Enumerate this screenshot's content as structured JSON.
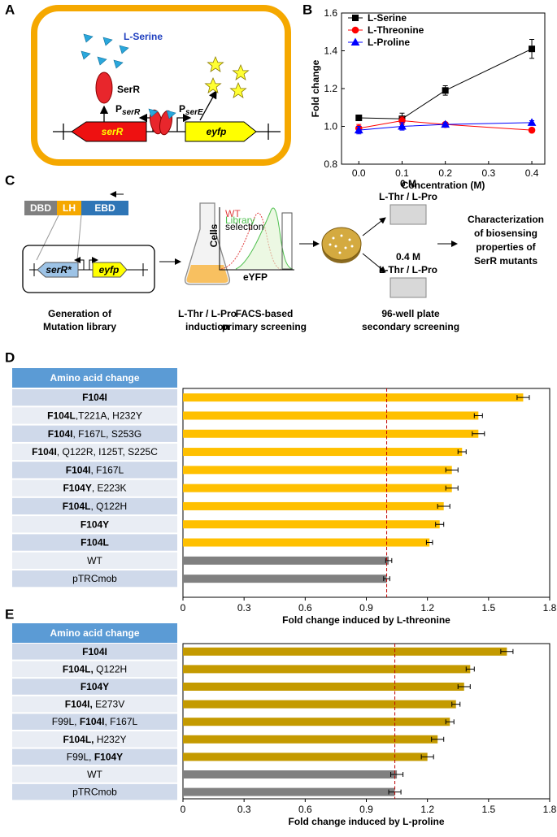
{
  "panel_labels": [
    "A",
    "B",
    "C",
    "D",
    "E"
  ],
  "diagram_a": {
    "ligand": "L-Serine",
    "protein": "SerR",
    "promoter_1": {
      "main": "P",
      "sub": "serR"
    },
    "promoter_2": {
      "main": "P",
      "sub": "serE"
    },
    "gene_1": "serR",
    "gene_2": "eyfp"
  },
  "diagram_c": {
    "domains": [
      "DBD",
      "LH",
      "EBD"
    ],
    "gene_1": "serR*",
    "gene_2": "eyfp",
    "step_1": [
      "Generation of",
      "Mutation library"
    ],
    "step_2": [
      "L-Thr / L-Pro",
      "induction"
    ],
    "step_3": [
      "FACS-based",
      "primary screening"
    ],
    "step_4": [
      "96-well plate",
      "secondary screening"
    ],
    "histogram": {
      "ylabel": "Cells",
      "xlabel": "eYFP",
      "legend": [
        "WT",
        "Library",
        "selection"
      ]
    },
    "plate_1": {
      "concentration": "0 M",
      "ligand": "L-Thr / L-Pro"
    },
    "plate_2": {
      "concentration": "0.4 M",
      "ligand": "L-Thr / L-Pro"
    },
    "result": [
      "Characterization",
      "of biosensing",
      "properties of",
      "SerR mutants"
    ]
  },
  "chart_data": [
    {
      "type": "line",
      "xlabel": "Concentration (M)",
      "ylabel": "Fold change",
      "x": [
        0,
        0.1,
        0.2,
        0.4
      ],
      "xlim": [
        -0.04,
        0.43
      ],
      "xticks": [
        {
          "value": 0,
          "label": "0.0"
        },
        0.1,
        0.2,
        0.3,
        0.4
      ],
      "ylim": [
        0.8,
        1.6
      ],
      "yticks": [
        0.8,
        {
          "value": 1,
          "label": "1.0"
        },
        1.2,
        1.4,
        1.6
      ],
      "legend": "upper left",
      "series": [
        {
          "name": "L-Serine",
          "color": "#000000",
          "marker": "square",
          "values": [
            1.045,
            1.04,
            1.19,
            1.41
          ],
          "errors": [
            0.015,
            0.03,
            0.025,
            0.05
          ]
        },
        {
          "name": "L-Threonine",
          "color": "#ff0000",
          "marker": "circle",
          "values": [
            0.99,
            1.03,
            1.01,
            0.98
          ],
          "errors": [
            0.02,
            0.02,
            0.01,
            0.01
          ]
        },
        {
          "name": "L-Proline",
          "color": "#0000ff",
          "marker": "triangle",
          "values": [
            0.98,
            1.0,
            1.01,
            1.02
          ],
          "errors": [
            0.02,
            0.02,
            0.01,
            0.01
          ]
        }
      ]
    },
    {
      "type": "hbar",
      "header": "Amino acid change",
      "xlabel": "Fold change induced by L-threonine",
      "categories": [
        [
          {
            "text": "F104I",
            "bold": true
          }
        ],
        [
          {
            "text": "F104L",
            "bold": true
          },
          {
            "text": ",T221A, H232Y"
          }
        ],
        [
          {
            "text": "F104I",
            "bold": true
          },
          {
            "text": ", F167L, S253G"
          }
        ],
        [
          {
            "text": "F104I",
            "bold": true
          },
          {
            "text": ", Q122R, I125T, S225C"
          }
        ],
        [
          {
            "text": "F104I",
            "bold": true
          },
          {
            "text": ", F167L"
          }
        ],
        [
          {
            "text": "F104Y",
            "bold": true
          },
          {
            "text": ", E223K"
          }
        ],
        [
          {
            "text": "F104L",
            "bold": true
          },
          {
            "text": ", Q122H"
          }
        ],
        [
          {
            "text": "F104Y",
            "bold": true
          }
        ],
        [
          {
            "text": "F104L",
            "bold": true
          }
        ],
        [
          {
            "text": "WT"
          }
        ],
        [
          {
            "text": "pTRCmob"
          }
        ]
      ],
      "values": [
        1.67,
        1.45,
        1.45,
        1.37,
        1.32,
        1.32,
        1.28,
        1.26,
        1.21,
        1.01,
        1.0
      ],
      "errors": [
        0.03,
        0.02,
        0.03,
        0.02,
        0.03,
        0.03,
        0.03,
        0.02,
        0.015,
        0.015,
        0.015
      ],
      "colors": [
        "#ffc000",
        "#ffc000",
        "#ffc000",
        "#ffc000",
        "#ffc000",
        "#ffc000",
        "#ffc000",
        "#ffc000",
        "#ffc000",
        "#808080",
        "#808080"
      ],
      "reference_line": 1.0,
      "xlim": [
        0,
        1.8
      ],
      "xticks": [
        0,
        0.3,
        0.6,
        0.9,
        1.2,
        1.5,
        1.8
      ]
    },
    {
      "type": "hbar",
      "header": "Amino acid change",
      "xlabel": "Fold change induced by L-proline",
      "categories": [
        [
          {
            "text": "F104I",
            "bold": true
          }
        ],
        [
          {
            "text": "F104L,",
            "bold": true
          },
          {
            "text": " Q122H"
          }
        ],
        [
          {
            "text": "F104Y",
            "bold": true
          }
        ],
        [
          {
            "text": "F104I,",
            "bold": true
          },
          {
            "text": " E273V"
          }
        ],
        [
          {
            "text": "F99L, "
          },
          {
            "text": "F104I",
            "bold": true
          },
          {
            "text": ", F167L"
          }
        ],
        [
          {
            "text": "F104L,",
            "bold": true
          },
          {
            "text": " H232Y"
          }
        ],
        [
          {
            "text": "F99L, "
          },
          {
            "text": "F104Y",
            "bold": true
          }
        ],
        [
          {
            "text": "WT"
          }
        ],
        [
          {
            "text": "pTRCmob"
          }
        ]
      ],
      "values": [
        1.59,
        1.41,
        1.38,
        1.34,
        1.31,
        1.25,
        1.2,
        1.05,
        1.04
      ],
      "errors": [
        0.03,
        0.02,
        0.03,
        0.02,
        0.02,
        0.03,
        0.03,
        0.03,
        0.03
      ],
      "colors": [
        "#c49a00",
        "#c49a00",
        "#c49a00",
        "#c49a00",
        "#c49a00",
        "#c49a00",
        "#c49a00",
        "#808080",
        "#808080"
      ],
      "reference_line": 1.04,
      "xlim": [
        0,
        1.8
      ],
      "xticks": [
        0,
        0.3,
        0.6,
        0.9,
        1.2,
        1.5,
        1.8
      ]
    }
  ]
}
